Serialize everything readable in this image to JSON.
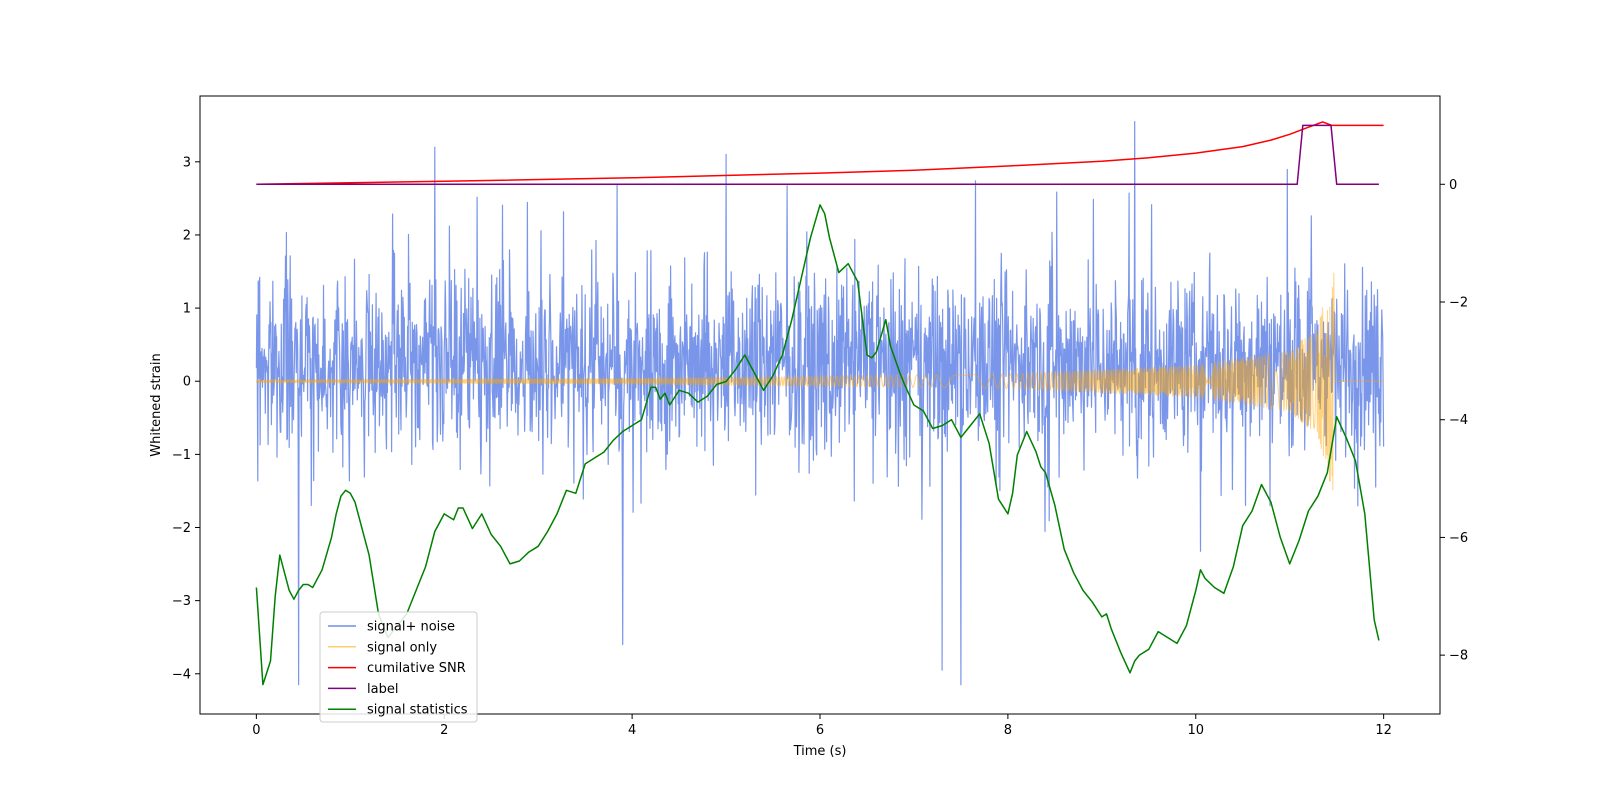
{
  "chart_data": {
    "type": "line",
    "title": "",
    "xlabel": "Time (s)",
    "ylabel_left": "Whitened strain",
    "ylabel_right": "",
    "xlim": [
      -0.6,
      12.6
    ],
    "ylim_left": [
      -4.55,
      3.9
    ],
    "ylim_right": [
      -9.0,
      1.5
    ],
    "x_ticks": [
      0,
      2,
      4,
      6,
      8,
      10,
      12
    ],
    "y_ticks_left": [
      -4,
      -3,
      -2,
      -1,
      0,
      1,
      2,
      3
    ],
    "y_ticks_right": [
      -8,
      -6,
      -4,
      -2,
      0
    ],
    "tick_labels": {
      "x": [
        "0",
        "2",
        "4",
        "6",
        "8",
        "10",
        "12"
      ],
      "y_left": [
        "−4",
        "−3",
        "−2",
        "−1",
        "0",
        "1",
        "2",
        "3"
      ],
      "y_right": [
        "−8",
        "−6",
        "−4",
        "−2",
        "0"
      ]
    },
    "legend_position": "lower-left",
    "series": [
      {
        "name": "signal+ noise",
        "axis": "left",
        "color": "#4169e1",
        "style": "dense-noise",
        "x_range": [
          0,
          12
        ],
        "envelope_typical": [
          -1.5,
          2.4
        ],
        "peak_values": [
          [
            1.9,
            3.2
          ],
          [
            5.0,
            3.1
          ],
          [
            9.35,
            3.55
          ],
          [
            7.5,
            -4.15
          ],
          [
            7.3,
            -3.95
          ],
          [
            0.45,
            -4.15
          ],
          [
            3.9,
            -3.6
          ]
        ]
      },
      {
        "name": "signal only",
        "axis": "left",
        "color": "#ffa500",
        "style": "chirp",
        "x_range": [
          0,
          11.47
        ],
        "amplitude_points": [
          [
            0,
            0.02
          ],
          [
            4,
            0.04
          ],
          [
            8,
            0.1
          ],
          [
            10,
            0.22
          ],
          [
            11,
            0.42
          ],
          [
            11.3,
            0.75
          ],
          [
            11.45,
            1.5
          ]
        ]
      },
      {
        "name": "cumilative SNR",
        "axis": "right",
        "color": "#ff0000",
        "x": [
          0,
          2,
          4,
          6,
          7,
          8,
          9,
          9.5,
          10,
          10.5,
          10.8,
          11.0,
          11.2,
          11.35,
          11.45,
          12
        ],
        "y": [
          0.0,
          0.05,
          0.11,
          0.19,
          0.24,
          0.31,
          0.39,
          0.45,
          0.53,
          0.64,
          0.75,
          0.85,
          0.97,
          1.06,
          1.0,
          1.0
        ]
      },
      {
        "name": "label",
        "axis": "right",
        "color": "#800080",
        "x": [
          0,
          11.08,
          11.14,
          11.44,
          11.5,
          11.95
        ],
        "y": [
          0,
          0,
          1,
          1,
          0,
          0
        ]
      },
      {
        "name": "signal statistics",
        "axis": "right",
        "color": "#008000",
        "x": [
          0,
          0.07,
          0.15,
          0.2,
          0.25,
          0.3,
          0.35,
          0.4,
          0.45,
          0.5,
          0.55,
          0.6,
          0.7,
          0.8,
          0.85,
          0.9,
          0.95,
          1.0,
          1.05,
          1.1,
          1.2,
          1.3,
          1.4,
          1.5,
          1.6,
          1.7,
          1.8,
          1.9,
          2.0,
          2.1,
          2.15,
          2.2,
          2.3,
          2.4,
          2.5,
          2.6,
          2.7,
          2.8,
          2.9,
          3.0,
          3.1,
          3.2,
          3.3,
          3.4,
          3.5,
          3.6,
          3.7,
          3.8,
          3.9,
          4.0,
          4.1,
          4.2,
          4.25,
          4.3,
          4.35,
          4.4,
          4.5,
          4.6,
          4.7,
          4.8,
          4.9,
          5.0,
          5.1,
          5.2,
          5.3,
          5.35,
          5.4,
          5.5,
          5.6,
          5.7,
          5.8,
          5.9,
          6.0,
          6.05,
          6.1,
          6.2,
          6.3,
          6.4,
          6.5,
          6.55,
          6.6,
          6.7,
          6.75,
          6.85,
          6.9,
          7.0,
          7.1,
          7.2,
          7.3,
          7.4,
          7.5,
          7.6,
          7.7,
          7.8,
          7.9,
          8.0,
          8.05,
          8.1,
          8.2,
          8.3,
          8.35,
          8.4,
          8.5,
          8.6,
          8.7,
          8.8,
          8.9,
          9.0,
          9.05,
          9.1,
          9.2,
          9.3,
          9.35,
          9.4,
          9.5,
          9.6,
          9.7,
          9.8,
          9.9,
          10.0,
          10.05,
          10.1,
          10.2,
          10.3,
          10.4,
          10.5,
          10.6,
          10.7,
          10.8,
          10.9,
          11.0,
          11.1,
          11.2,
          11.3,
          11.4,
          11.5,
          11.6,
          11.7,
          11.8,
          11.9,
          11.95
        ],
        "y": [
          -6.85,
          -8.5,
          -8.1,
          -7.0,
          -6.3,
          -6.6,
          -6.9,
          -7.05,
          -6.9,
          -6.8,
          -6.8,
          -6.85,
          -6.55,
          -6.0,
          -5.6,
          -5.3,
          -5.2,
          -5.25,
          -5.4,
          -5.7,
          -6.3,
          -7.3,
          -7.7,
          -7.5,
          -7.3,
          -6.9,
          -6.5,
          -5.9,
          -5.6,
          -5.7,
          -5.5,
          -5.5,
          -5.85,
          -5.6,
          -5.95,
          -6.15,
          -6.45,
          -6.4,
          -6.25,
          -6.15,
          -5.9,
          -5.6,
          -5.2,
          -5.25,
          -4.75,
          -4.65,
          -4.55,
          -4.35,
          -4.2,
          -4.1,
          -4.0,
          -3.45,
          -3.45,
          -3.65,
          -3.55,
          -3.75,
          -3.5,
          -3.55,
          -3.7,
          -3.6,
          -3.4,
          -3.35,
          -3.15,
          -2.9,
          -3.2,
          -3.35,
          -3.5,
          -3.25,
          -2.9,
          -2.3,
          -1.6,
          -0.9,
          -0.35,
          -0.5,
          -0.9,
          -1.5,
          -1.35,
          -1.65,
          -2.9,
          -2.95,
          -2.85,
          -2.3,
          -2.75,
          -3.2,
          -3.4,
          -3.75,
          -3.85,
          -4.15,
          -4.1,
          -4.0,
          -4.3,
          -4.1,
          -3.9,
          -4.4,
          -5.35,
          -5.6,
          -5.25,
          -4.6,
          -4.2,
          -4.55,
          -4.8,
          -4.9,
          -5.45,
          -6.2,
          -6.6,
          -6.9,
          -7.1,
          -7.35,
          -7.3,
          -7.55,
          -7.95,
          -8.3,
          -8.1,
          -8.0,
          -7.9,
          -7.6,
          -7.7,
          -7.8,
          -7.5,
          -6.9,
          -6.55,
          -6.7,
          -6.85,
          -6.95,
          -6.5,
          -5.8,
          -5.55,
          -5.1,
          -5.4,
          -6.0,
          -6.45,
          -6.05,
          -5.55,
          -5.3,
          -4.9,
          -3.95,
          -4.3,
          -4.7,
          -5.6,
          -7.4,
          -7.75
        ]
      }
    ]
  }
}
